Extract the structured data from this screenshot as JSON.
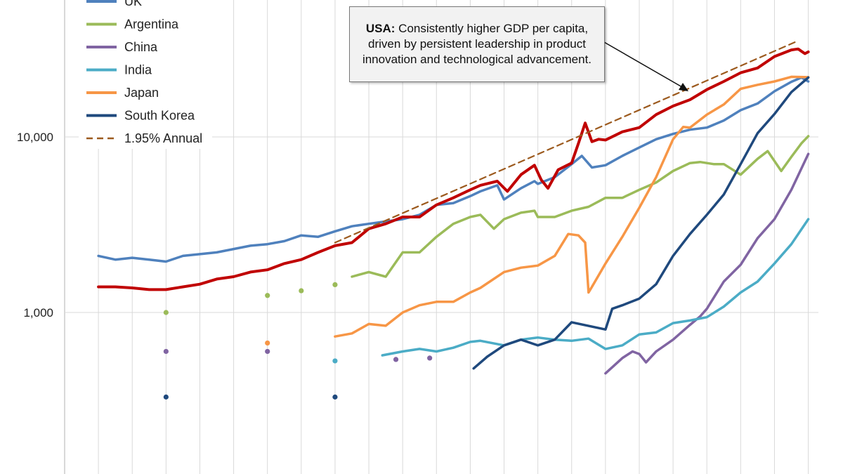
{
  "chart_data": {
    "type": "line",
    "yscale": "log",
    "ylim": [
      210,
      45000
    ],
    "ytick_labels": [
      "10,000",
      "1,000"
    ],
    "ytick_values": [
      10000,
      1000
    ],
    "grid": {
      "vertical": true,
      "horizontal": true
    },
    "legend_position": "top-left",
    "annotation": {
      "bold": "USA:",
      "text": "Consistently higher GDP per capita, driven by persistent leadership in product innovation and technological advancement."
    },
    "series": [
      {
        "name": "UK",
        "color": "#4f81bd",
        "style": "solid",
        "x": [
          1800,
          1805,
          1810,
          1815,
          1820,
          1825,
          1830,
          1835,
          1840,
          1845,
          1850,
          1855,
          1860,
          1865,
          1870,
          1875,
          1880,
          1885,
          1890,
          1895,
          1900,
          1905,
          1910,
          1913,
          1918,
          1920,
          1925,
          1929,
          1930,
          1935,
          1940,
          1943,
          1946,
          1950,
          1955,
          1960,
          1965,
          1970,
          1975,
          1980,
          1985,
          1990,
          1995,
          2000,
          2005,
          2008,
          2010
        ],
        "y": [
          2100,
          2000,
          2050,
          2000,
          1950,
          2100,
          2150,
          2200,
          2300,
          2400,
          2450,
          2550,
          2750,
          2700,
          2900,
          3100,
          3200,
          3300,
          3400,
          3600,
          4100,
          4200,
          4600,
          4900,
          5300,
          4400,
          5100,
          5600,
          5400,
          5900,
          7000,
          7800,
          6700,
          6900,
          7800,
          8700,
          9700,
          10400,
          11000,
          11300,
          12400,
          14200,
          15500,
          18200,
          20600,
          21800,
          20700
        ]
      },
      {
        "name": "Argentina",
        "color": "#9bbb59",
        "style": "solid",
        "x": [
          1875,
          1880,
          1885,
          1890,
          1895,
          1900,
          1905,
          1910,
          1913,
          1917,
          1920,
          1925,
          1929,
          1930,
          1935,
          1940,
          1945,
          1950,
          1955,
          1960,
          1965,
          1970,
          1975,
          1978,
          1982,
          1985,
          1990,
          1995,
          1998,
          2002,
          2005,
          2008,
          2010
        ],
        "y": [
          1600,
          1700,
          1600,
          2200,
          2200,
          2700,
          3200,
          3500,
          3600,
          3000,
          3400,
          3700,
          3800,
          3500,
          3500,
          3800,
          4000,
          4500,
          4500,
          5000,
          5500,
          6400,
          7100,
          7200,
          7000,
          7000,
          6100,
          7500,
          8300,
          6400,
          7700,
          9200,
          10100
        ]
      },
      {
        "name": "China",
        "color": "#8064a2",
        "style": "solid",
        "x": [
          1950,
          1955,
          1958,
          1960,
          1962,
          1965,
          1970,
          1975,
          1978,
          1980,
          1985,
          1990,
          1995,
          2000,
          2005,
          2010
        ],
        "y": [
          450,
          550,
          600,
          580,
          520,
          600,
          700,
          850,
          950,
          1050,
          1500,
          1870,
          2650,
          3400,
          5000,
          8000
        ]
      },
      {
        "name": "India",
        "color": "#4bacc6",
        "style": "solid",
        "x": [
          1884,
          1890,
          1895,
          1900,
          1905,
          1910,
          1913,
          1920,
          1925,
          1930,
          1935,
          1940,
          1945,
          1950,
          1955,
          1960,
          1965,
          1970,
          1975,
          1980,
          1985,
          1990,
          1995,
          2000,
          2005,
          2010
        ],
        "y": [
          570,
          600,
          620,
          600,
          630,
          680,
          690,
          650,
          700,
          720,
          700,
          690,
          710,
          620,
          650,
          750,
          770,
          870,
          900,
          940,
          1080,
          1300,
          1500,
          1900,
          2450,
          3400
        ]
      },
      {
        "name": "Japan",
        "color": "#f79646",
        "style": "solid",
        "x": [
          1870,
          1875,
          1880,
          1885,
          1890,
          1895,
          1900,
          1905,
          1910,
          1913,
          1920,
          1925,
          1930,
          1935,
          1939,
          1942,
          1944,
          1945,
          1946,
          1950,
          1955,
          1960,
          1965,
          1970,
          1973,
          1975,
          1980,
          1985,
          1990,
          1995,
          2000,
          2005,
          2010
        ],
        "y": [
          730,
          760,
          860,
          840,
          1000,
          1100,
          1150,
          1150,
          1300,
          1380,
          1700,
          1800,
          1850,
          2100,
          2800,
          2750,
          2500,
          1300,
          1400,
          1900,
          2700,
          3950,
          5900,
          9700,
          11400,
          11300,
          13400,
          15300,
          18800,
          19800,
          20700,
          22000,
          21900
        ]
      },
      {
        "name": "South Korea",
        "color": "#1f497d",
        "style": "solid",
        "x": [
          1911,
          1915,
          1920,
          1925,
          1930,
          1935,
          1940,
          1950,
          1952,
          1955,
          1960,
          1965,
          1970,
          1975,
          1980,
          1985,
          1990,
          1995,
          2000,
          2005,
          2010
        ],
        "y": [
          480,
          560,
          650,
          700,
          650,
          700,
          880,
          800,
          1050,
          1100,
          1200,
          1450,
          2100,
          2800,
          3600,
          4700,
          7000,
          10500,
          13500,
          18000,
          21800
        ]
      },
      {
        "name": "USA",
        "color": "#c00000",
        "style": "solid",
        "x": [
          1800,
          1805,
          1810,
          1815,
          1820,
          1825,
          1830,
          1835,
          1840,
          1845,
          1850,
          1855,
          1860,
          1865,
          1870,
          1875,
          1880,
          1885,
          1890,
          1895,
          1900,
          1905,
          1910,
          1913,
          1918,
          1921,
          1925,
          1929,
          1931,
          1933,
          1936,
          1940,
          1942,
          1944,
          1946,
          1948,
          1950,
          1955,
          1960,
          1965,
          1970,
          1975,
          1980,
          1985,
          1990,
          1995,
          2000,
          2005,
          2007,
          2009,
          2010
        ],
        "y": [
          1400,
          1400,
          1380,
          1350,
          1350,
          1400,
          1450,
          1550,
          1600,
          1700,
          1750,
          1900,
          2000,
          2200,
          2400,
          2500,
          3000,
          3200,
          3500,
          3500,
          4100,
          4500,
          5000,
          5300,
          5600,
          4900,
          6100,
          6900,
          5700,
          5100,
          6500,
          7100,
          9200,
          12000,
          9400,
          9700,
          9600,
          10700,
          11300,
          13400,
          15000,
          16300,
          18600,
          20700,
          23200,
          24700,
          28700,
          31300,
          31700,
          29800,
          30500
        ]
      },
      {
        "name": "1.95% Annual",
        "color": "#9c5a1e",
        "style": "dashed",
        "x": [
          1870,
          2007
        ],
        "y": [
          2500,
          35300
        ]
      }
    ],
    "points": [
      {
        "series": "Argentina",
        "x": [
          1820,
          1850,
          1860,
          1870
        ],
        "y": [
          1000,
          1250,
          1330,
          1440
        ]
      },
      {
        "series": "China",
        "x": [
          1820,
          1850,
          1888,
          1898
        ],
        "y": [
          600,
          600,
          540,
          550
        ]
      },
      {
        "series": "India",
        "x": [
          1870
        ],
        "y": [
          530
        ]
      },
      {
        "series": "Japan",
        "x": [
          1850
        ],
        "y": [
          670
        ]
      },
      {
        "series": "South Korea",
        "x": [
          1820,
          1870
        ],
        "y": [
          330,
          330
        ]
      }
    ]
  }
}
